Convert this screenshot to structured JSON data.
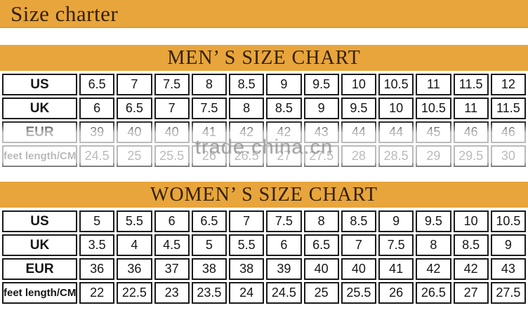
{
  "page": {
    "title": "Size charter"
  },
  "watermark": {
    "text": "trade.china.cn"
  },
  "colors": {
    "band": "#E8A53C",
    "title_text": "#33210a",
    "table_text": "#161616",
    "watermark": "#909090"
  },
  "men": {
    "title": "MEN’ S SIZE CHART",
    "rows": [
      {
        "label": "US",
        "values": [
          "6.5",
          "7",
          "7.5",
          "8",
          "8.5",
          "9",
          "9.5",
          "10",
          "10.5",
          "11",
          "11.5",
          "12"
        ]
      },
      {
        "label": "UK",
        "values": [
          "6",
          "6.5",
          "7",
          "7.5",
          "8",
          "8.5",
          "9",
          "9.5",
          "10",
          "10.5",
          "11",
          "11.5"
        ]
      },
      {
        "label": "EUR",
        "values": [
          "39",
          "40",
          "40",
          "41",
          "42",
          "42",
          "43",
          "44",
          "44",
          "45",
          "46",
          "46"
        ]
      },
      {
        "label": "feet length/CM",
        "values": [
          "24.5",
          "25",
          "25.5",
          "26",
          "26.5",
          "27",
          "27.5",
          "28",
          "28.5",
          "29",
          "29.5",
          "30"
        ]
      }
    ]
  },
  "women": {
    "title": "WOMEN’ S SIZE CHART",
    "rows": [
      {
        "label": "US",
        "values": [
          "5",
          "5.5",
          "6",
          "6.5",
          "7",
          "7.5",
          "8",
          "8.5",
          "9",
          "9.5",
          "10",
          "10.5"
        ]
      },
      {
        "label": "UK",
        "values": [
          "3.5",
          "4",
          "4.5",
          "5",
          "5.5",
          "6",
          "6.5",
          "7",
          "7.5",
          "8",
          "8.5",
          "9"
        ]
      },
      {
        "label": "EUR",
        "values": [
          "36",
          "36",
          "37",
          "38",
          "38",
          "39",
          "40",
          "40",
          "41",
          "42",
          "42",
          "43"
        ]
      },
      {
        "label": "feet length/CM",
        "values": [
          "22",
          "22.5",
          "23",
          "23.5",
          "24",
          "24.5",
          "25",
          "25.5",
          "26",
          "26.5",
          "27",
          "27.5"
        ]
      }
    ]
  }
}
